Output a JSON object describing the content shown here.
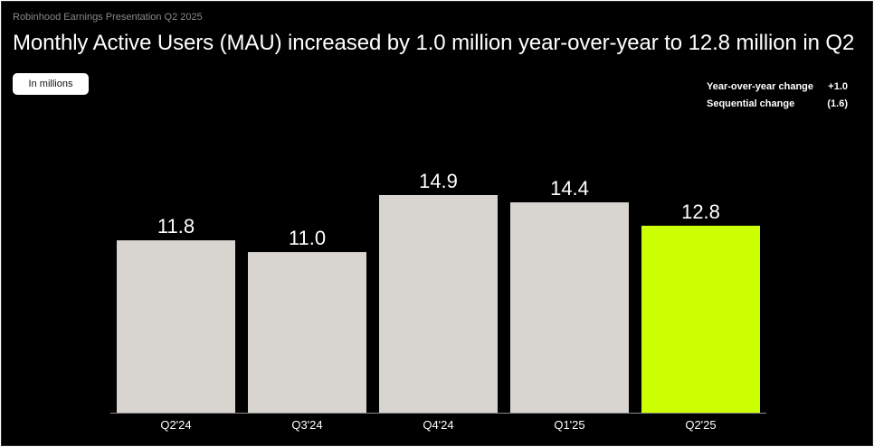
{
  "header": {
    "subtitle": "Robinhood Earnings Presentation Q2 2025",
    "title": "Monthly Active Users (MAU) increased by 1.0 million year-over-year to 12.8 million in Q2"
  },
  "unit_label": "In millions",
  "stats": [
    {
      "label": "Year-over-year change",
      "value": "+1.0"
    },
    {
      "label": "Sequential change",
      "value": "(1.6)"
    }
  ],
  "colors": {
    "background": "#000000",
    "bar_default": "#d8d4cf",
    "bar_highlight": "#ccff00",
    "axis": "#8a8a8a"
  },
  "chart_data": {
    "type": "bar",
    "title": "",
    "xlabel": "",
    "ylabel": "",
    "categories": [
      "Q2'24",
      "Q3'24",
      "Q4'24",
      "Q1'25",
      "Q2'25"
    ],
    "values": [
      11.8,
      11.0,
      14.9,
      14.4,
      12.8
    ],
    "value_labels": [
      "11.8",
      "11.0",
      "14.9",
      "14.4",
      "12.8"
    ],
    "highlight_index": 4,
    "ylim": [
      0,
      15.5
    ],
    "grid": false,
    "legend": "none"
  }
}
